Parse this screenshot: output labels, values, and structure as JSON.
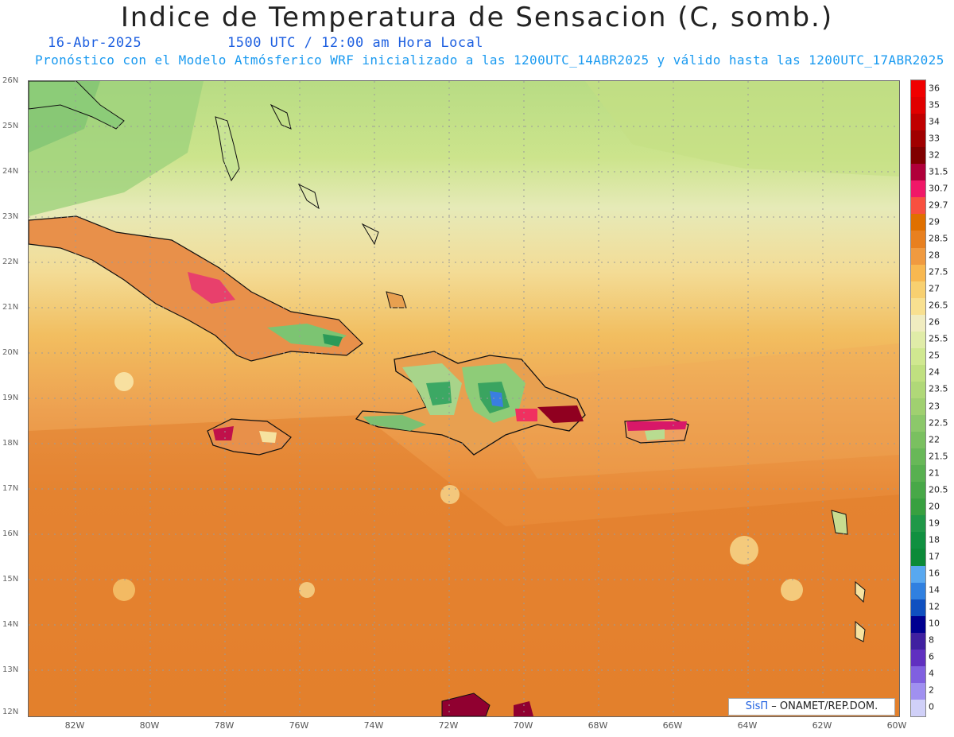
{
  "header": {
    "title": "Indice de Temperatura de Sensacion (C, somb.)",
    "date": "16-Abr-2025",
    "time": "1500 UTC / 12:00 am Hora Local",
    "info": "Pronóstico con el Modelo Atmósferico WRF inicializado a las 1200UTC_14ABR2025 y válido hasta las  1200UTC_17ABR2025"
  },
  "axes": {
    "lat_labels": [
      "26N",
      "25N",
      "24N",
      "23N",
      "22N",
      "21N",
      "20N",
      "19N",
      "18N",
      "17N",
      "16N",
      "15N",
      "14N",
      "13N",
      "12N"
    ],
    "lon_labels": [
      "82W",
      "80W",
      "78W",
      "76W",
      "74W",
      "72W",
      "70W",
      "68W",
      "66W",
      "64W",
      "62W",
      "60W"
    ]
  },
  "legend": {
    "labels": [
      "36",
      "35",
      "34",
      "33",
      "32",
      "31.5",
      "30.7",
      "29.7",
      "29",
      "28.5",
      "28",
      "27.5",
      "27",
      "26.5",
      "26",
      "25.5",
      "25",
      "24",
      "23.5",
      "23",
      "22.5",
      "22",
      "21.5",
      "21",
      "20.5",
      "20",
      "19",
      "18",
      "17",
      "16",
      "14",
      "12",
      "10",
      "8",
      "6",
      "4",
      "2",
      "0"
    ],
    "colors": [
      "#f00000",
      "#e00000",
      "#c00000",
      "#a00000",
      "#800000",
      "#b0003a",
      "#f01868",
      "#f85040",
      "#e07000",
      "#e88020",
      "#f09a40",
      "#f8b850",
      "#f8d070",
      "#f8e090",
      "#f0ecc0",
      "#e0eca8",
      "#d0e890",
      "#c0e080",
      "#b0d878",
      "#a0d070",
      "#8cc86a",
      "#7ac060",
      "#68b858",
      "#58b050",
      "#48a848",
      "#38a040",
      "#209848",
      "#109040",
      "#0c8a38",
      "#58a8f0",
      "#3080e0",
      "#1050c0",
      "#000090",
      "#4020a0",
      "#6030c0",
      "#8060e0",
      "#a090f0",
      "#d0d0f8"
    ]
  },
  "credit": {
    "brand": "SisΠ",
    "org": " – ONAMET/REP.DOM."
  }
}
